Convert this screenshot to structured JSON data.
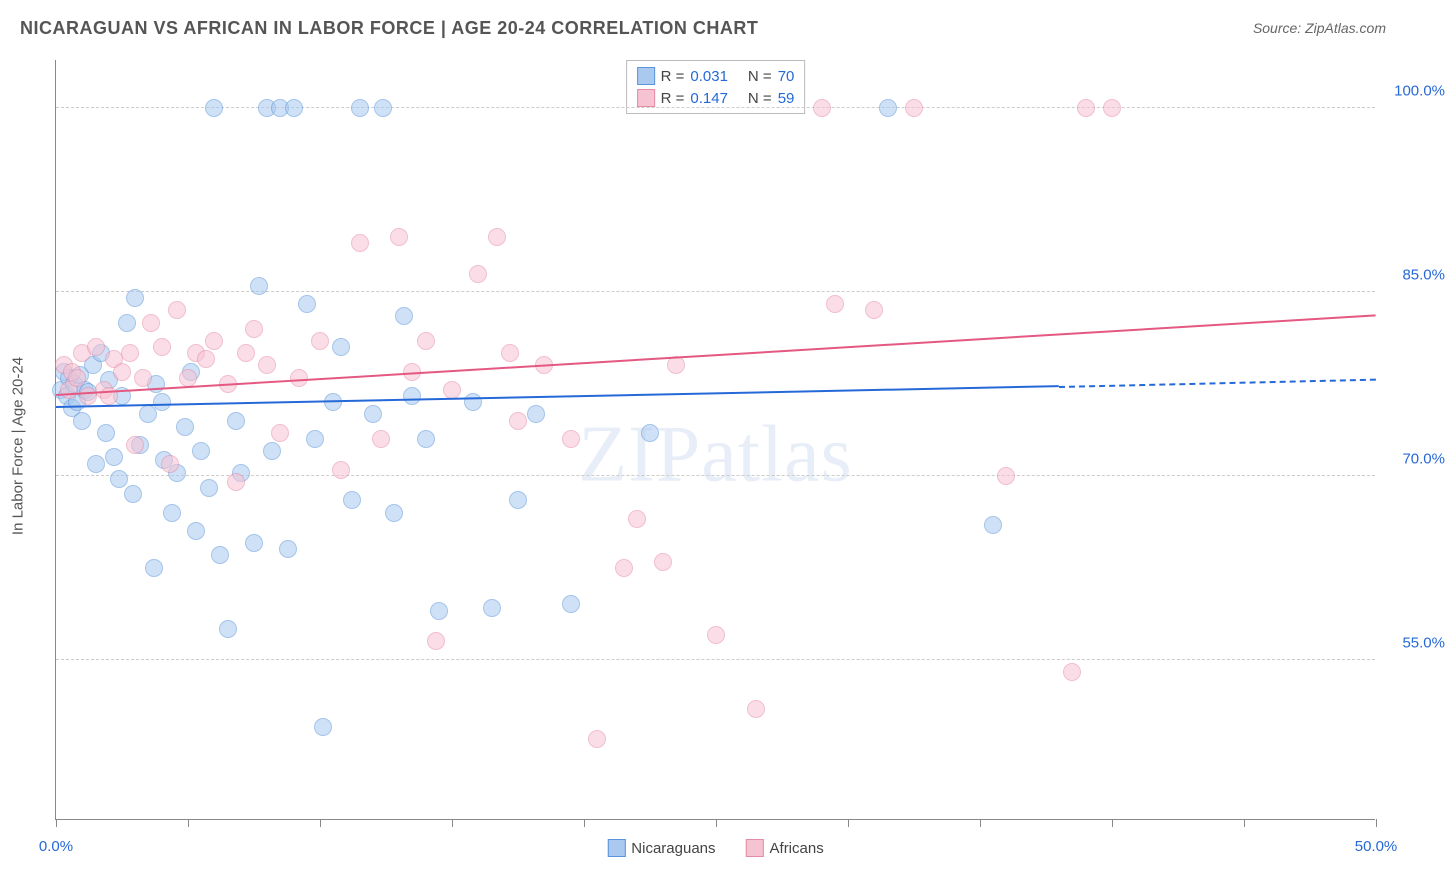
{
  "title": "NICARAGUAN VS AFRICAN IN LABOR FORCE | AGE 20-24 CORRELATION CHART",
  "source_label": "Source: ZipAtlas.com",
  "watermark": "ZIPatlas",
  "ylabel": "In Labor Force | Age 20-24",
  "chart": {
    "type": "scatter",
    "background_color": "#ffffff",
    "grid_color": "#cccccc",
    "axis_color": "#888888",
    "xlim": [
      0,
      50
    ],
    "ylim": [
      42,
      104
    ],
    "x_ticks": [
      0,
      5,
      10,
      15,
      20,
      25,
      30,
      35,
      40,
      45,
      50
    ],
    "x_tick_labels": {
      "0": "0.0%",
      "50": "50.0%"
    },
    "y_gridlines": [
      55,
      70,
      85,
      100
    ],
    "y_tick_labels": {
      "55": "55.0%",
      "70": "70.0%",
      "85": "85.0%",
      "100": "100.0%"
    },
    "label_fontsize": 15,
    "title_fontsize": 18,
    "point_radius": 9,
    "point_opacity": 0.55,
    "series": [
      {
        "name": "Nicaraguans",
        "color_fill": "#a9c9ef",
        "color_stroke": "#5b94da",
        "r": "0.031",
        "n": "70",
        "trend": {
          "x1": 0,
          "y1": 75.5,
          "x2": 38,
          "y2": 77.2,
          "dash_x2": 50,
          "dash_y2": 77.8,
          "color": "#2569d8"
        },
        "points": [
          [
            0.2,
            77
          ],
          [
            0.3,
            78.5
          ],
          [
            0.4,
            76.5
          ],
          [
            0.5,
            78
          ],
          [
            0.6,
            75.5
          ],
          [
            0.7,
            77.5
          ],
          [
            0.8,
            76
          ],
          [
            0.9,
            78.2
          ],
          [
            1.0,
            74.5
          ],
          [
            1.1,
            77
          ],
          [
            1.2,
            76.8
          ],
          [
            1.4,
            79
          ],
          [
            1.5,
            71
          ],
          [
            1.7,
            80
          ],
          [
            1.9,
            73.5
          ],
          [
            2.0,
            77.8
          ],
          [
            2.2,
            71.5
          ],
          [
            2.4,
            69.7
          ],
          [
            2.5,
            76.5
          ],
          [
            2.7,
            82.5
          ],
          [
            2.9,
            68.5
          ],
          [
            3.0,
            84.5
          ],
          [
            3.2,
            72.5
          ],
          [
            3.5,
            75
          ],
          [
            3.7,
            62.5
          ],
          [
            3.8,
            77.5
          ],
          [
            4.0,
            76
          ],
          [
            4.1,
            71.3
          ],
          [
            4.4,
            67
          ],
          [
            4.6,
            70.2
          ],
          [
            4.9,
            74
          ],
          [
            5.1,
            78.5
          ],
          [
            5.3,
            65.5
          ],
          [
            5.5,
            72
          ],
          [
            5.8,
            69
          ],
          [
            6.0,
            100
          ],
          [
            6.2,
            63.5
          ],
          [
            6.5,
            57.5
          ],
          [
            6.8,
            74.5
          ],
          [
            7.0,
            70.2
          ],
          [
            7.5,
            64.5
          ],
          [
            7.7,
            85.5
          ],
          [
            8.0,
            100
          ],
          [
            8.2,
            72
          ],
          [
            8.5,
            100
          ],
          [
            8.8,
            64
          ],
          [
            9.0,
            100
          ],
          [
            9.5,
            84
          ],
          [
            9.8,
            73
          ],
          [
            10.1,
            49.5
          ],
          [
            10.5,
            76
          ],
          [
            10.8,
            80.5
          ],
          [
            11.2,
            68
          ],
          [
            11.5,
            100
          ],
          [
            12.0,
            75
          ],
          [
            12.4,
            100
          ],
          [
            12.8,
            67
          ],
          [
            13.2,
            83
          ],
          [
            13.5,
            76.5
          ],
          [
            14.0,
            73
          ],
          [
            14.5,
            59
          ],
          [
            15.8,
            76
          ],
          [
            16.5,
            59.2
          ],
          [
            17.5,
            68
          ],
          [
            18.2,
            75
          ],
          [
            19.5,
            59.5
          ],
          [
            22.5,
            73.5
          ],
          [
            31.5,
            100
          ],
          [
            35.5,
            66
          ]
        ]
      },
      {
        "name": "Africans",
        "color_fill": "#f6c3d2",
        "color_stroke": "#e68ba6",
        "r": "0.147",
        "n": "59",
        "trend": {
          "x1": 0,
          "y1": 76.5,
          "x2": 50,
          "y2": 83,
          "color": "#e45882"
        },
        "points": [
          [
            0.3,
            79
          ],
          [
            0.5,
            77
          ],
          [
            0.6,
            78.5
          ],
          [
            0.8,
            78
          ],
          [
            1.0,
            80
          ],
          [
            1.2,
            76.5
          ],
          [
            1.5,
            80.5
          ],
          [
            1.8,
            77
          ],
          [
            2.0,
            76.5
          ],
          [
            2.2,
            79.5
          ],
          [
            2.5,
            78.5
          ],
          [
            2.8,
            80
          ],
          [
            3.0,
            72.5
          ],
          [
            3.3,
            78
          ],
          [
            3.6,
            82.5
          ],
          [
            4.0,
            80.5
          ],
          [
            4.3,
            71
          ],
          [
            4.6,
            83.5
          ],
          [
            5.0,
            78
          ],
          [
            5.3,
            80
          ],
          [
            5.7,
            79.5
          ],
          [
            6.0,
            81
          ],
          [
            6.5,
            77.5
          ],
          [
            6.8,
            69.5
          ],
          [
            7.2,
            80
          ],
          [
            7.5,
            82
          ],
          [
            8.0,
            79
          ],
          [
            8.5,
            73.5
          ],
          [
            9.2,
            78
          ],
          [
            10.0,
            81
          ],
          [
            10.8,
            70.5
          ],
          [
            11.5,
            89
          ],
          [
            12.3,
            73
          ],
          [
            13.0,
            89.5
          ],
          [
            13.5,
            78.5
          ],
          [
            14.0,
            81
          ],
          [
            14.4,
            56.5
          ],
          [
            15.0,
            77
          ],
          [
            16.0,
            86.5
          ],
          [
            16.7,
            89.5
          ],
          [
            17.2,
            80
          ],
          [
            17.5,
            74.5
          ],
          [
            18.5,
            79
          ],
          [
            19.5,
            73
          ],
          [
            20.5,
            48.5
          ],
          [
            21.5,
            62.5
          ],
          [
            22.0,
            66.5
          ],
          [
            23.0,
            63
          ],
          [
            23.5,
            79
          ],
          [
            25.0,
            57
          ],
          [
            26.5,
            51
          ],
          [
            29.0,
            100
          ],
          [
            29.5,
            84
          ],
          [
            31.0,
            83.5
          ],
          [
            32.5,
            100
          ],
          [
            36.0,
            70
          ],
          [
            38.5,
            54
          ],
          [
            39.0,
            100
          ],
          [
            40.0,
            100
          ]
        ]
      }
    ]
  },
  "legend_bottom": [
    "Nicaraguans",
    "Africans"
  ],
  "legend_top_r_prefix": "R =",
  "legend_top_n_prefix": "N ="
}
